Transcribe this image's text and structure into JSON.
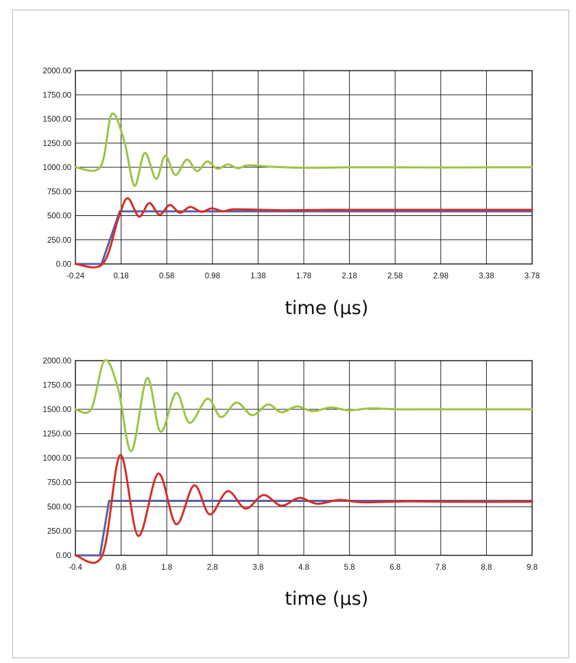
{
  "chart_data": [
    {
      "type": "line",
      "xlabel": "time (µs)",
      "ylabel": "",
      "xlim": [
        -0.24,
        3.78
      ],
      "ylim": [
        0,
        2000
      ],
      "grid": true,
      "x_ticks": [
        "-0.24",
        "0.18",
        "0.58",
        "0.98",
        "1.38",
        "1.78",
        "2.18",
        "2.58",
        "2.98",
        "3.38",
        "3.78"
      ],
      "y_ticks": [
        "0.00",
        "250.00",
        "500.00",
        "750.00",
        "1000.00",
        "1250.00",
        "1500.00",
        "1750.00",
        "2000.00"
      ],
      "series": [
        {
          "color": "#9bc442",
          "x": [
            -0.24,
            -0.02,
            0.08,
            0.19,
            0.28,
            0.37,
            0.47,
            0.55,
            0.64,
            0.74,
            0.83,
            0.92,
            1.01,
            1.1,
            1.19,
            1.28,
            1.5,
            1.8,
            2.2,
            2.6,
            3.0,
            3.4,
            3.78
          ],
          "y": [
            1000,
            1005,
            1550,
            1270,
            810,
            1150,
            880,
            1120,
            920,
            1080,
            960,
            1060,
            985,
            1030,
            990,
            1020,
            1005,
            995,
            1000,
            1000,
            998,
            1000,
            1000
          ]
        },
        {
          "color": "#5560a8",
          "x": [
            -0.24,
            -0.01,
            0.15,
            3.78
          ],
          "y": [
            0,
            0,
            545,
            545
          ]
        },
        {
          "color": "#d42e26",
          "x": [
            -0.24,
            0.0,
            0.14,
            0.22,
            0.32,
            0.41,
            0.5,
            0.59,
            0.68,
            0.77,
            0.87,
            0.96,
            1.06,
            1.15,
            1.4,
            1.6,
            2.0,
            2.5,
            3.0,
            3.78
          ],
          "y": [
            0,
            0,
            480,
            680,
            490,
            630,
            510,
            610,
            530,
            590,
            540,
            575,
            545,
            565,
            560,
            555,
            560,
            560,
            560,
            560
          ]
        }
      ]
    },
    {
      "type": "line",
      "xlabel": "time (µs)",
      "ylabel": "",
      "xlim": [
        -0.4,
        9.8
      ],
      "ylim": [
        0,
        2000
      ],
      "grid": true,
      "x_ticks": [
        "-0.4",
        "0.8",
        "1.8",
        "2.8",
        "3.8",
        "4.8",
        "5.8",
        "6.8",
        "7.8",
        "8.8",
        "9.8"
      ],
      "y_ticks": [
        "0.00",
        "250.00",
        "500.00",
        "750.00",
        "1000.00",
        "1250.00",
        "1500.00",
        "1750.00",
        "2000.00"
      ],
      "series": [
        {
          "color": "#9bc442",
          "x": [
            -0.4,
            -0.05,
            0.25,
            0.55,
            0.85,
            1.2,
            1.5,
            1.85,
            2.15,
            2.55,
            2.85,
            3.2,
            3.55,
            3.9,
            4.2,
            4.55,
            4.9,
            5.3,
            5.7,
            6.2,
            6.8,
            7.5,
            8.5,
            9.8
          ],
          "y": [
            1500,
            1500,
            2000,
            1720,
            1070,
            1820,
            1270,
            1670,
            1360,
            1610,
            1420,
            1570,
            1440,
            1550,
            1470,
            1530,
            1480,
            1520,
            1490,
            1510,
            1500,
            1500,
            1500,
            1500
          ]
        },
        {
          "color": "#5560a8",
          "x": [
            -0.4,
            0.15,
            0.35,
            9.8
          ],
          "y": [
            0,
            0,
            560,
            560
          ]
        },
        {
          "color": "#d42e26",
          "x": [
            -0.4,
            0.2,
            0.6,
            1.0,
            1.45,
            1.85,
            2.25,
            2.6,
            3.0,
            3.4,
            3.8,
            4.2,
            4.6,
            5.0,
            5.5,
            6.0,
            7.0,
            8.0,
            9.8
          ],
          "y": [
            0,
            0,
            1030,
            200,
            840,
            320,
            720,
            420,
            660,
            480,
            620,
            510,
            590,
            530,
            570,
            545,
            555,
            550,
            550
          ]
        }
      ]
    }
  ]
}
